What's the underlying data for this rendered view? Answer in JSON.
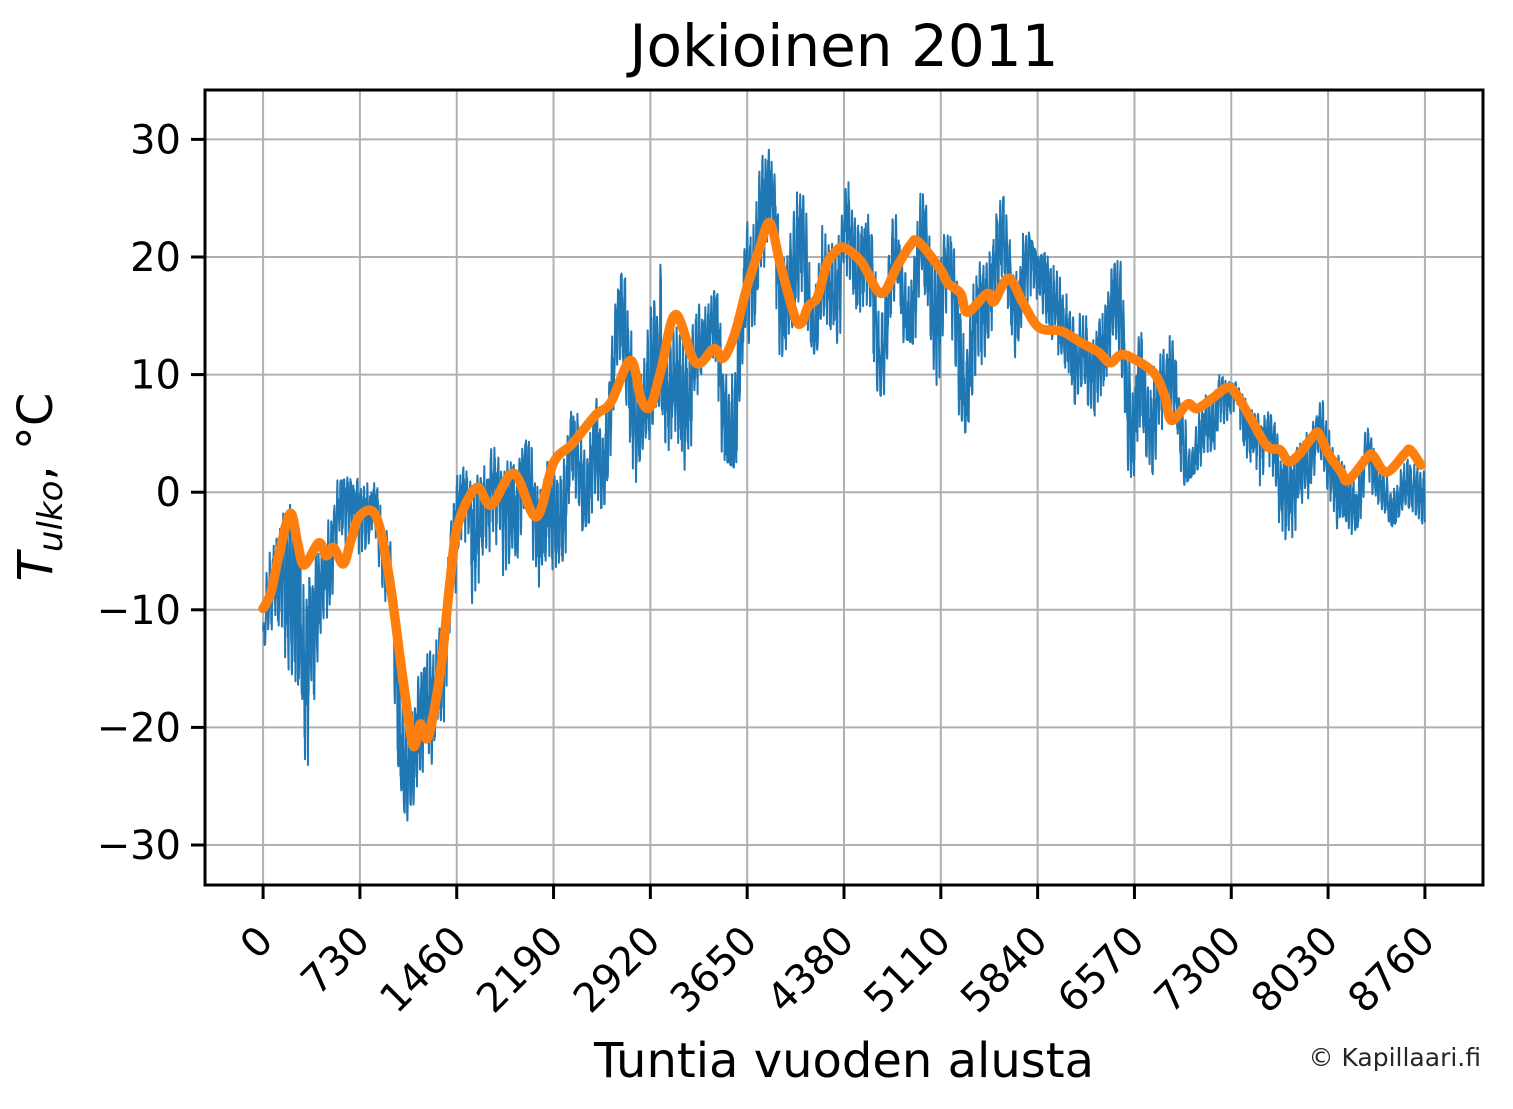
{
  "watermark": "© Kapillaari.fi",
  "chart_data": {
    "type": "line",
    "title": "Jokioinen 2011",
    "xlabel": "Tuntia vuoden alusta",
    "ylabel": "T_ulko, °C",
    "ylabel_parts": {
      "prefix": "T",
      "subscript": "ulko",
      "suffix": ", °C"
    },
    "grid": true,
    "xlim": [
      -438,
      9198
    ],
    "ylim": [
      -33.4,
      34.2
    ],
    "x_ticks": [
      0,
      730,
      1460,
      2190,
      2920,
      3650,
      4380,
      5110,
      5840,
      6570,
      7300,
      8030,
      8760
    ],
    "x_tick_labels": [
      "0",
      "730",
      "1460",
      "2190",
      "2920",
      "3650",
      "4380",
      "5110",
      "5840",
      "6570",
      "7300",
      "8030",
      "8760"
    ],
    "y_ticks": [
      -30,
      -20,
      -10,
      0,
      10,
      20,
      30
    ],
    "y_tick_labels": [
      "−30",
      "−20",
      "−10",
      "0",
      "10",
      "20",
      "30"
    ],
    "colors": {
      "hourly": "#1f77b4",
      "moving_average": "#ff7f0e",
      "grid": "#b0b0b0",
      "spine": "#000000"
    },
    "series": [
      {
        "name": "hourly-outdoor-temperature",
        "color": "#1f77b4",
        "style": "noisy-hourly-line",
        "hours_range": [
          0,
          8760
        ],
        "envelope_h_min_max": [
          [
            0,
            -13,
            -2
          ],
          [
            150,
            -16,
            2
          ],
          [
            320,
            -25,
            0
          ],
          [
            450,
            -12,
            1
          ],
          [
            600,
            -21,
            1
          ],
          [
            730,
            -13,
            2
          ],
          [
            850,
            -8,
            2
          ],
          [
            950,
            -17,
            -1
          ],
          [
            1060,
            -27,
            -7
          ],
          [
            1160,
            -30.3,
            -12
          ],
          [
            1250,
            -29,
            -10
          ],
          [
            1350,
            -24,
            -6
          ],
          [
            1460,
            -17,
            3
          ],
          [
            1560,
            -11,
            4
          ],
          [
            1750,
            -13,
            5
          ],
          [
            1900,
            -9,
            6
          ],
          [
            2000,
            -12,
            5
          ],
          [
            2100,
            -9,
            6
          ],
          [
            2200,
            -7,
            9
          ],
          [
            2350,
            -4,
            10
          ],
          [
            2500,
            -2,
            13
          ],
          [
            2650,
            0,
            16
          ],
          [
            2760,
            0,
            21.5
          ],
          [
            2880,
            1,
            18
          ],
          [
            3000,
            2,
            25
          ],
          [
            3110,
            5,
            26
          ],
          [
            3220,
            0,
            18
          ],
          [
            3350,
            1,
            16
          ],
          [
            3450,
            3,
            20
          ],
          [
            3560,
            2,
            18
          ],
          [
            3650,
            8,
            27
          ],
          [
            3820,
            11,
            31
          ],
          [
            3950,
            9,
            26
          ],
          [
            4100,
            10,
            25
          ],
          [
            4250,
            12,
            28
          ],
          [
            4400,
            12,
            28
          ],
          [
            4550,
            10,
            26
          ],
          [
            4670,
            8,
            24
          ],
          [
            4850,
            13,
            30
          ],
          [
            4980,
            12,
            28
          ],
          [
            5150,
            7,
            25
          ],
          [
            5300,
            5,
            22
          ],
          [
            5500,
            9,
            24
          ],
          [
            5650,
            11,
            26
          ],
          [
            5840,
            8,
            20
          ],
          [
            6000,
            8,
            21
          ],
          [
            6150,
            6,
            19
          ],
          [
            6300,
            4,
            17
          ],
          [
            6500,
            1,
            21
          ],
          [
            6650,
            2,
            16
          ],
          [
            6800,
            0,
            14
          ],
          [
            6900,
            0,
            12
          ],
          [
            7050,
            2,
            12
          ],
          [
            7180,
            3,
            13
          ],
          [
            7280,
            4,
            10
          ],
          [
            7400,
            0,
            9
          ],
          [
            7550,
            -3,
            8
          ],
          [
            7700,
            -6,
            7
          ],
          [
            7850,
            -2,
            9
          ],
          [
            7970,
            0,
            9.5
          ],
          [
            8100,
            -5,
            7
          ],
          [
            8250,
            -3,
            6
          ],
          [
            8400,
            -1,
            7
          ],
          [
            8520,
            -3,
            6
          ],
          [
            8610,
            -1,
            9.5
          ],
          [
            8700,
            -2,
            6
          ],
          [
            8760,
            -3,
            2
          ]
        ]
      },
      {
        "name": "moving-average-temperature",
        "color": "#ff7f0e",
        "style": "smooth-thick-line",
        "points_h_degC": [
          [
            0,
            -9.9
          ],
          [
            60,
            -8.5
          ],
          [
            120,
            -5.3
          ],
          [
            205,
            -1.8
          ],
          [
            260,
            -4.3
          ],
          [
            310,
            -6.2
          ],
          [
            420,
            -4.3
          ],
          [
            475,
            -5.4
          ],
          [
            530,
            -4.7
          ],
          [
            605,
            -6.1
          ],
          [
            660,
            -4.2
          ],
          [
            730,
            -2.0
          ],
          [
            850,
            -2.0
          ],
          [
            950,
            -7.2
          ],
          [
            1050,
            -15.5
          ],
          [
            1130,
            -21.5
          ],
          [
            1185,
            -19.7
          ],
          [
            1245,
            -20.8
          ],
          [
            1340,
            -15.0
          ],
          [
            1410,
            -7.5
          ],
          [
            1470,
            -2.7
          ],
          [
            1610,
            0.4
          ],
          [
            1720,
            -1.1
          ],
          [
            1890,
            1.6
          ],
          [
            2060,
            -2.1
          ],
          [
            2190,
            2.5
          ],
          [
            2330,
            4.1
          ],
          [
            2510,
            6.6
          ],
          [
            2620,
            7.6
          ],
          [
            2770,
            11.2
          ],
          [
            2850,
            7.9
          ],
          [
            2920,
            7.3
          ],
          [
            3000,
            10.4
          ],
          [
            3110,
            15.1
          ],
          [
            3260,
            11.0
          ],
          [
            3400,
            12.2
          ],
          [
            3470,
            11.4
          ],
          [
            3560,
            13.6
          ],
          [
            3650,
            17.5
          ],
          [
            3740,
            20.6
          ],
          [
            3820,
            22.9
          ],
          [
            3900,
            19.4
          ],
          [
            4010,
            14.9
          ],
          [
            4060,
            14.4
          ],
          [
            4110,
            15.8
          ],
          [
            4180,
            16.6
          ],
          [
            4250,
            19.4
          ],
          [
            4320,
            20.5
          ],
          [
            4380,
            20.8
          ],
          [
            4510,
            19.6
          ],
          [
            4660,
            16.9
          ],
          [
            4780,
            19.2
          ],
          [
            4880,
            21.0
          ],
          [
            4940,
            21.3
          ],
          [
            5110,
            18.9
          ],
          [
            5160,
            17.8
          ],
          [
            5260,
            16.9
          ],
          [
            5310,
            15.3
          ],
          [
            5460,
            16.9
          ],
          [
            5510,
            16.2
          ],
          [
            5620,
            18.2
          ],
          [
            5730,
            16.1
          ],
          [
            5850,
            14.0
          ],
          [
            6020,
            13.7
          ],
          [
            6170,
            12.7
          ],
          [
            6300,
            11.9
          ],
          [
            6385,
            11.0
          ],
          [
            6470,
            11.7
          ],
          [
            6570,
            11.3
          ],
          [
            6720,
            10.1
          ],
          [
            6800,
            8.1
          ],
          [
            6850,
            6.1
          ],
          [
            6970,
            7.5
          ],
          [
            7040,
            7.1
          ],
          [
            7160,
            8.0
          ],
          [
            7270,
            8.9
          ],
          [
            7340,
            8.3
          ],
          [
            7455,
            6.1
          ],
          [
            7570,
            3.9
          ],
          [
            7670,
            3.6
          ],
          [
            7730,
            2.6
          ],
          [
            7810,
            3.2
          ],
          [
            7920,
            4.8
          ],
          [
            7960,
            5.0
          ],
          [
            8030,
            3.3
          ],
          [
            8130,
            1.7
          ],
          [
            8180,
            1.0
          ],
          [
            8330,
            3.0
          ],
          [
            8370,
            3.1
          ],
          [
            8470,
            1.7
          ],
          [
            8610,
            3.3
          ],
          [
            8650,
            3.6
          ],
          [
            8730,
            2.3
          ]
        ]
      }
    ]
  }
}
